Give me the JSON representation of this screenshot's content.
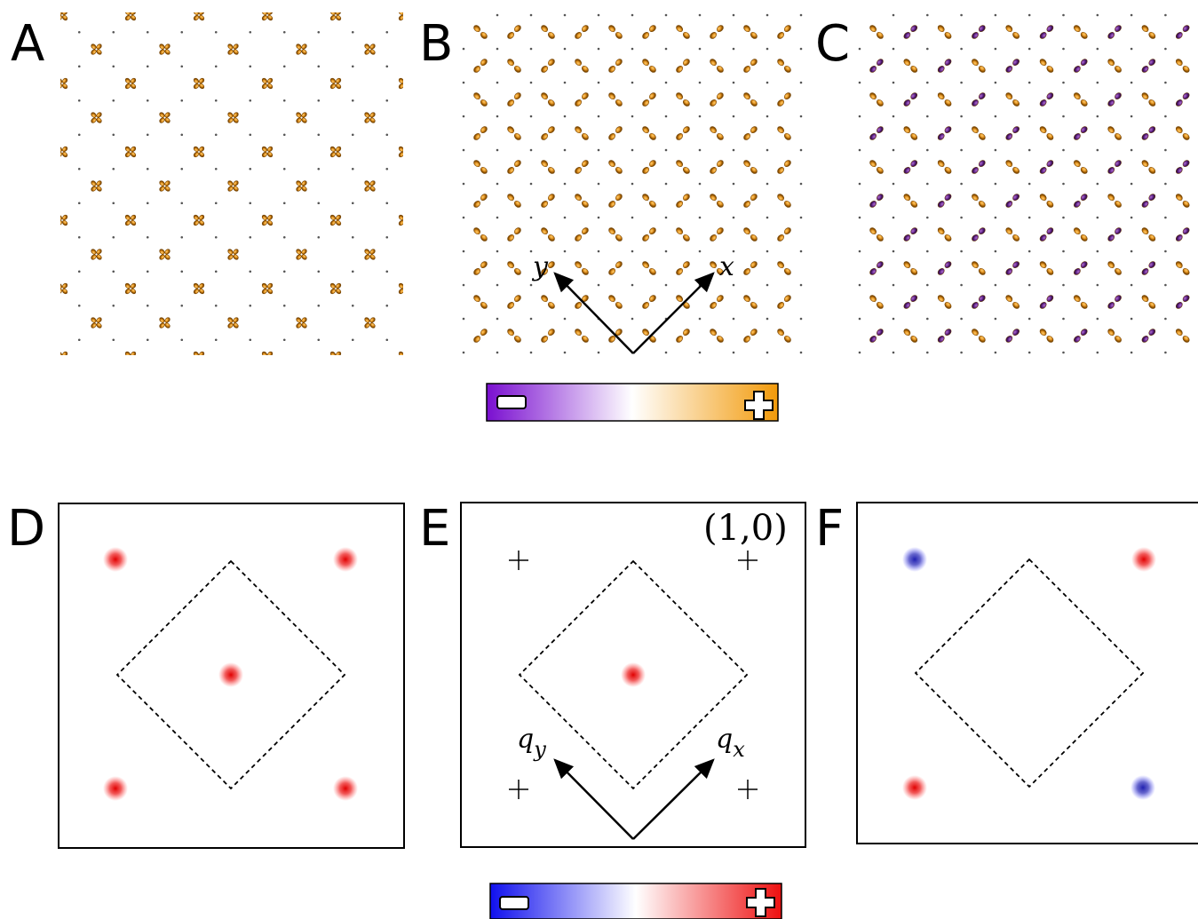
{
  "panels": [
    {
      "label": "A"
    },
    {
      "label": "B"
    },
    {
      "label": "C"
    },
    {
      "label": "D"
    },
    {
      "label": "E"
    },
    {
      "label": "F"
    }
  ],
  "real_space_axes": {
    "y": "y",
    "x": "x"
  },
  "momentum_axes": {
    "qy": {
      "base": "q",
      "sub": "y"
    },
    "qx": {
      "base": "q",
      "sub": "x"
    }
  },
  "panel_e_annotation": "(1,0)"
}
